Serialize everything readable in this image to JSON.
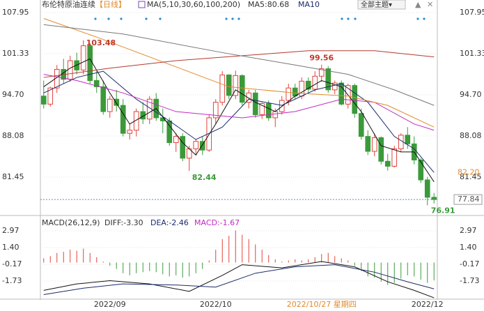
{
  "header": {
    "title": "布伦特原油连续",
    "period": "【日线】",
    "ma_label": "MA(5,10,30,60,100,200)",
    "ma5": "MA5:80.68",
    "ma10": "MA10",
    "theme_button": "全部主题▾"
  },
  "chart_data": [
    {
      "type": "candlestick",
      "ylim": [
        75.72,
        108.4
      ],
      "yticks": [
        107.95,
        101.33,
        {
          "value": 94.7,
          "label": "94.70"
        },
        88.08,
        81.45
      ],
      "categories": [
        null,
        null,
        null,
        null,
        null,
        null,
        null,
        null,
        null,
        null,
        "2022/09",
        null,
        null,
        null,
        null,
        null,
        null,
        null,
        null,
        null,
        null,
        null,
        null,
        null,
        null,
        null,
        "2022/10",
        null,
        null,
        null,
        null,
        null,
        null,
        null,
        null,
        null,
        null,
        null,
        null,
        null,
        null,
        null,
        "2022/10/27 星期四",
        null,
        null,
        null,
        null,
        null,
        null,
        null,
        null,
        null,
        null,
        null,
        null,
        null,
        null,
        null,
        "2022/12",
        null
      ],
      "cursor_index": 42,
      "up_color": "#e0433b",
      "down_color": "#3a9a3a",
      "open": [
        94.5,
        93.2,
        95.8,
        98.8,
        97.2,
        100.2,
        98.7,
        102.6,
        97,
        96,
        92,
        94,
        93,
        88.5,
        89,
        92,
        90.8,
        94,
        91,
        90.5,
        87,
        88,
        84.5,
        86,
        87.2,
        85.8,
        91,
        93.5,
        97.9,
        94.6,
        97.8,
        93.5,
        95,
        91.5,
        93.3,
        91,
        92,
        93.8,
        95.8,
        94.5,
        96.9,
        95.6,
        97.7,
        98.9,
        95.5,
        96.6,
        93.2,
        96.2,
        91.7,
        88,
        85.6,
        87.8,
        84,
        83.2,
        86,
        88.2,
        86.8,
        84.2,
        81,
        78.2
      ],
      "high": [
        97,
        96,
        99.5,
        100.5,
        101,
        101.5,
        103.48,
        103,
        98.5,
        97,
        94.5,
        95.5,
        94,
        90,
        92.5,
        93.5,
        94.5,
        95,
        92.5,
        91,
        88.5,
        88.5,
        86.5,
        87.5,
        88,
        91.5,
        94,
        98.5,
        98,
        98.6,
        98,
        95.5,
        95.5,
        93.5,
        93.8,
        92.5,
        94.5,
        96.5,
        96.5,
        97.5,
        97.5,
        98.5,
        99.56,
        99.3,
        97,
        97,
        96.5,
        96.5,
        92.5,
        89,
        88.5,
        88,
        85.2,
        86.5,
        88.5,
        89.5,
        88,
        84.5,
        81.5,
        78.9
      ],
      "low": [
        92.5,
        92.8,
        95,
        96.5,
        96.8,
        98,
        98,
        96.5,
        95,
        91.5,
        91,
        92,
        88,
        87.5,
        88,
        90,
        90,
        90.5,
        88.5,
        86.5,
        85.5,
        84,
        82.44,
        85,
        85,
        85.5,
        90,
        93,
        94,
        94,
        93,
        92.5,
        91,
        90.8,
        90.5,
        89.5,
        91.5,
        93,
        94,
        94,
        95,
        95.2,
        96.8,
        95,
        94.8,
        93,
        92.5,
        91,
        87.5,
        85,
        84.8,
        83.5,
        82.5,
        83,
        85.5,
        86,
        83.5,
        80.5,
        76.91,
        77.2
      ],
      "close": [
        93.2,
        95.8,
        98.8,
        97.2,
        100.2,
        98.7,
        102.6,
        97,
        96,
        92,
        94,
        93,
        88.5,
        89,
        92,
        90.8,
        94,
        91,
        90.5,
        87,
        88,
        84.5,
        86,
        87.2,
        85.8,
        91,
        93.5,
        97.9,
        94.6,
        97.8,
        93.5,
        95,
        91.5,
        93.3,
        91,
        92,
        93.8,
        95.8,
        94.5,
        96.9,
        95.6,
        97.7,
        98.9,
        95.5,
        96.6,
        93.2,
        96.2,
        91.7,
        88,
        85.6,
        87.8,
        84,
        83.2,
        86,
        88.2,
        86.8,
        84.2,
        81,
        78.2,
        77.84
      ],
      "series": [
        {
          "name": "MA5",
          "color": "#111111",
          "x": [
            0,
            4,
            7,
            10,
            13,
            17,
            21,
            23,
            26,
            29,
            32,
            35,
            38,
            42,
            45,
            48,
            51,
            54,
            56,
            59
          ],
          "values": [
            96,
            99,
            100.5,
            95,
            90,
            92.5,
            87,
            85,
            90,
            95.5,
            93.5,
            92,
            94.5,
            97,
            96,
            92,
            86.5,
            85.5,
            85.5,
            80.68
          ]
        },
        {
          "name": "MA10",
          "color": "#1a2a6c",
          "x": [
            0,
            5,
            9,
            14,
            19,
            23,
            27,
            31,
            36,
            41,
            45,
            49,
            53,
            56,
            59
          ],
          "values": [
            95,
            97.5,
            98.5,
            94,
            90.5,
            87.5,
            89.5,
            94,
            93,
            95.5,
            96.5,
            93.5,
            88,
            86,
            82.2
          ]
        },
        {
          "name": "MA30",
          "color": "#c02bc0",
          "x": [
            0,
            5,
            12,
            20,
            30,
            38,
            45,
            50,
            56,
            59
          ],
          "values": [
            98,
            97,
            95,
            92,
            91,
            92,
            94,
            93.5,
            90,
            89
          ]
        },
        {
          "name": "MA60",
          "color": "#e08a2a",
          "x": [
            0,
            8,
            18,
            28,
            38,
            46,
            52,
            59
          ],
          "values": [
            107,
            104,
            100,
            96,
            95,
            94.5,
            93,
            89.5
          ]
        },
        {
          "name": "MA100",
          "color": "#b5392e",
          "x": [
            0,
            10,
            20,
            30,
            40,
            50,
            59
          ],
          "values": [
            97.5,
            99,
            100.2,
            101,
            101.8,
            101.8,
            100.8
          ]
        },
        {
          "name": "MA200",
          "color": "#777777",
          "x": [
            0,
            12,
            27,
            38,
            46,
            53,
            59
          ],
          "values": [
            106,
            104.5,
            101.5,
            99.5,
            98,
            95.5,
            93
          ]
        }
      ],
      "annotations": [
        {
          "index": 6,
          "value": 103.48,
          "color": "#c0392b",
          "place": "right"
        },
        {
          "index": 42,
          "value": 99.56,
          "color": "#c0392b",
          "place": "above"
        },
        {
          "index": 22,
          "value": 82.44,
          "color": "#3a9a3a",
          "place": "below"
        },
        {
          "index": 58,
          "value": 76.91,
          "color": "#3a9a3a",
          "place": "belowright"
        }
      ],
      "price_labels": [
        {
          "value": 82.2,
          "label": "82.20",
          "color": "#e08a2a",
          "boxed": false
        },
        {
          "value": 77.84,
          "label": "77.84",
          "color": "#555555",
          "boxed": true
        }
      ]
    },
    {
      "type": "macd",
      "title": "MACD(26,12,9)",
      "diff_label": "DIFF:-3.30",
      "dea_label": "DEA:-2.46",
      "macd_label": "MACD:-1.67",
      "ylim": [
        -3.36,
        4.21
      ],
      "yticks": [
        2.97,
        {
          "value": 1.4,
          "label": "1.40"
        },
        -0.17,
        -1.73
      ],
      "values": [
        0.4,
        0.6,
        0.9,
        1.0,
        1.2,
        1.1,
        1.3,
        0.9,
        0.5,
        0.1,
        -0.3,
        -0.6,
        -1.0,
        -1.2,
        -1.0,
        -0.9,
        -0.8,
        -0.9,
        -1.1,
        -1.3,
        -1.2,
        -1.4,
        -1.3,
        -1.0,
        -0.6,
        0.2,
        1.2,
        2.2,
        2.5,
        3.0,
        2.6,
        2.2,
        1.7,
        1.2,
        0.7,
        0.3,
        0.1,
        0.2,
        0.3,
        0.2,
        0.3,
        0.5,
        0.8,
        0.9,
        0.6,
        0.4,
        0.2,
        -0.3,
        -0.8,
        -1.3,
        -1.4,
        -1.8,
        -2.1,
        -1.9,
        -1.5,
        -1.2,
        -1.3,
        -1.6,
        -1.9,
        -1.67
      ],
      "up_color": "#e0433b",
      "down_color": "#3a9a3a",
      "series": [
        {
          "name": "DIFF",
          "color": "#111111",
          "x": [
            0,
            5,
            10,
            16,
            22,
            27,
            30,
            36,
            42,
            47,
            52,
            56,
            59
          ],
          "values": [
            -2.6,
            -2.0,
            -1.7,
            -2.0,
            -2.7,
            -1.2,
            -0.2,
            -0.5,
            0.1,
            -0.4,
            -1.8,
            -2.6,
            -3.3
          ]
        },
        {
          "name": "DEA",
          "color": "#1a2a6c",
          "x": [
            0,
            6,
            12,
            20,
            26,
            32,
            38,
            44,
            50,
            55,
            59
          ],
          "values": [
            -3.0,
            -2.4,
            -2.0,
            -2.1,
            -2.3,
            -1.0,
            -0.4,
            -0.2,
            -0.9,
            -1.8,
            -2.46
          ]
        }
      ]
    }
  ]
}
